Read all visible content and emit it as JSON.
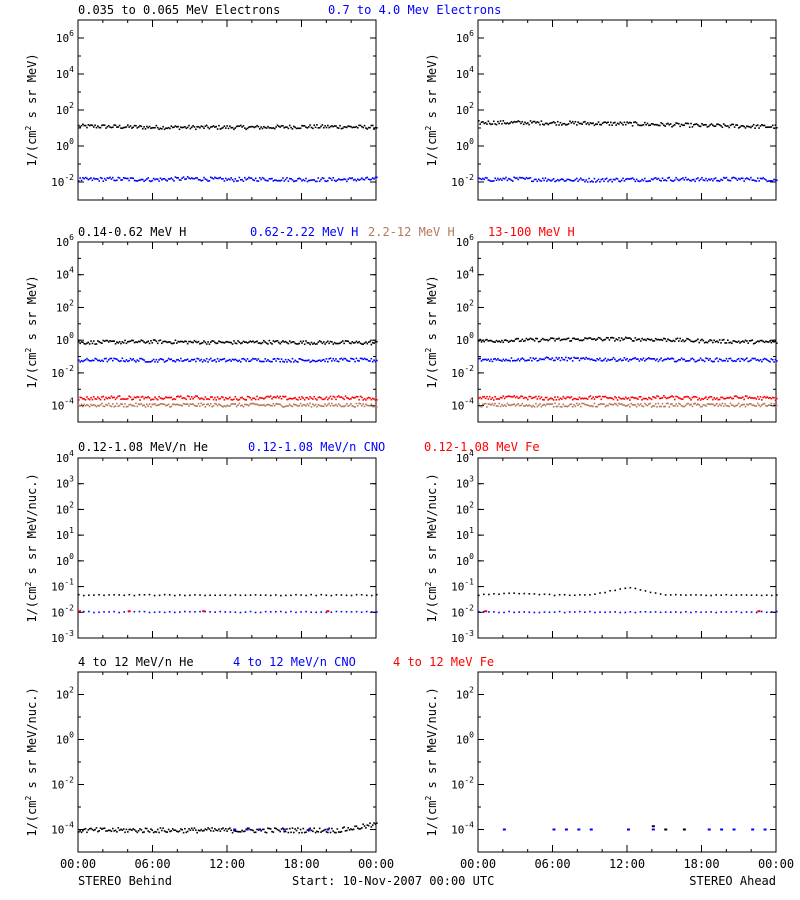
{
  "colors": {
    "black": "#000000",
    "blue": "#0000ff",
    "brown": "#b4785a",
    "red": "#ff0000"
  },
  "footer": {
    "left": "STEREO Behind",
    "center": "Start: 10-Nov-2007 00:00 UTC",
    "right": "STEREO Ahead"
  },
  "chart_data": [
    {
      "type": "scatter",
      "id": "electrons-behind",
      "ylabel": "1/(cm^2 s sr MeV)",
      "yscale": "log",
      "ylim": [
        0.001,
        10000000
      ],
      "yticks": [
        "10^-2",
        "10^0",
        "10^2",
        "10^4",
        "10^6"
      ],
      "series_labels": [
        {
          "text": "0.035 to 0.065 MeV Electrons",
          "color": "#000000"
        },
        {
          "text": "0.7 to 4.0 Mev Electrons",
          "color": "#0000ff"
        }
      ],
      "series": [
        {
          "color": "#000000",
          "x": [
            0,
            3,
            6,
            9,
            12,
            15,
            18,
            21,
            24
          ],
          "y": [
            14,
            13,
            12,
            12,
            12,
            12,
            13,
            13,
            12
          ]
        },
        {
          "color": "#0000ff",
          "x": [
            0,
            3,
            6,
            9,
            12,
            15,
            18,
            21,
            24
          ],
          "y": [
            0.015,
            0.016,
            0.015,
            0.017,
            0.015,
            0.016,
            0.015,
            0.015,
            0.016
          ]
        }
      ],
      "xticks": [
        "00:00",
        "06:00",
        "12:00",
        "18:00",
        "00:00"
      ]
    },
    {
      "type": "scatter",
      "id": "electrons-ahead",
      "ylabel": "1/(cm^2 s sr MeV)",
      "yscale": "log",
      "ylim": [
        0.001,
        10000000
      ],
      "yticks": [
        "10^-2",
        "10^0",
        "10^2",
        "10^4",
        "10^6"
      ],
      "series_labels": [],
      "series": [
        {
          "color": "#000000",
          "x": [
            0,
            3,
            6,
            9,
            12,
            15,
            18,
            21,
            24
          ],
          "y": [
            22,
            22,
            21,
            20,
            19,
            17,
            15,
            14,
            13
          ]
        },
        {
          "color": "#0000ff",
          "x": [
            0,
            3,
            6,
            9,
            12,
            15,
            18,
            21,
            24
          ],
          "y": [
            0.015,
            0.016,
            0.015,
            0.014,
            0.015,
            0.016,
            0.015,
            0.016,
            0.015
          ]
        }
      ],
      "xticks": [
        "00:00",
        "06:00",
        "12:00",
        "18:00",
        "00:00"
      ]
    },
    {
      "type": "scatter",
      "id": "protons-behind",
      "ylabel": "1/(cm^2 s sr MeV)",
      "yscale": "log",
      "ylim": [
        1e-05,
        1000000
      ],
      "yticks": [
        "10^-4",
        "10^-2",
        "10^0",
        "10^2",
        "10^4",
        "10^6"
      ],
      "series_labels": [
        {
          "text": "0.14-0.62 MeV H",
          "color": "#000000"
        },
        {
          "text": "0.62-2.22 MeV H",
          "color": "#0000ff"
        },
        {
          "text": "2.2-12 MeV H",
          "color": "#b4785a"
        },
        {
          "text": "13-100 MeV H",
          "color": "#ff0000"
        }
      ],
      "series": [
        {
          "color": "#000000",
          "x": [
            0,
            3,
            6,
            9,
            12,
            15,
            18,
            21,
            24
          ],
          "y": [
            0.8,
            0.85,
            0.9,
            0.85,
            0.8,
            0.85,
            0.8,
            0.8,
            0.75
          ]
        },
        {
          "color": "#0000ff",
          "x": [
            0,
            3,
            6,
            9,
            12,
            15,
            18,
            21,
            24
          ],
          "y": [
            0.065,
            0.07,
            0.065,
            0.07,
            0.065,
            0.07,
            0.065,
            0.07,
            0.065
          ]
        },
        {
          "color": "#b4785a",
          "x": [
            0,
            3,
            6,
            9,
            12,
            15,
            18,
            21,
            24
          ],
          "y": [
            0.00012,
            0.00012,
            0.00012,
            0.00012,
            0.00012,
            0.00012,
            0.00012,
            0.00012,
            0.00012
          ]
        },
        {
          "color": "#ff0000",
          "x": [
            0,
            3,
            6,
            9,
            12,
            15,
            18,
            21,
            24
          ],
          "y": [
            0.0003,
            0.00035,
            0.0003,
            0.00035,
            0.0003,
            0.00035,
            0.0003,
            0.00035,
            0.0003
          ]
        }
      ],
      "xticks": [
        "00:00",
        "06:00",
        "12:00",
        "18:00",
        "00:00"
      ]
    },
    {
      "type": "scatter",
      "id": "protons-ahead",
      "ylabel": "1/(cm^2 s sr MeV)",
      "yscale": "log",
      "ylim": [
        1e-05,
        1000000
      ],
      "yticks": [
        "10^-4",
        "10^-2",
        "10^0",
        "10^2",
        "10^4",
        "10^6"
      ],
      "series_labels": [],
      "series": [
        {
          "color": "#000000",
          "x": [
            0,
            3,
            6,
            9,
            12,
            15,
            18,
            21,
            24
          ],
          "y": [
            1.0,
            1.1,
            1.2,
            1.3,
            1.3,
            1.2,
            1.0,
            0.9,
            0.85
          ]
        },
        {
          "color": "#0000ff",
          "x": [
            0,
            3,
            6,
            9,
            12,
            15,
            18,
            21,
            24
          ],
          "y": [
            0.07,
            0.075,
            0.08,
            0.075,
            0.075,
            0.07,
            0.07,
            0.07,
            0.065
          ]
        },
        {
          "color": "#b4785a",
          "x": [
            0,
            3,
            6,
            9,
            12,
            15,
            18,
            21,
            24
          ],
          "y": [
            0.00012,
            0.00012,
            0.00012,
            0.00012,
            0.00012,
            0.00012,
            0.00012,
            0.00012,
            0.00012
          ]
        },
        {
          "color": "#ff0000",
          "x": [
            0,
            3,
            6,
            9,
            12,
            15,
            18,
            21,
            24
          ],
          "y": [
            0.0003,
            0.00035,
            0.0003,
            0.00035,
            0.0003,
            0.00035,
            0.0003,
            0.00035,
            0.0003
          ]
        }
      ],
      "xticks": [
        "00:00",
        "06:00",
        "12:00",
        "18:00",
        "00:00"
      ]
    },
    {
      "type": "scatter",
      "id": "heavy-low-behind",
      "ylabel": "1/(cm^2 s sr MeV/nuc.)",
      "yscale": "log",
      "ylim": [
        0.001,
        10000
      ],
      "yticks": [
        "10^-3",
        "10^-2",
        "10^-1",
        "10^0",
        "10^1",
        "10^2",
        "10^3",
        "10^4"
      ],
      "series_labels": [
        {
          "text": "0.12-1.08 MeV/n He",
          "color": "#000000"
        },
        {
          "text": "0.12-1.08 MeV/n CNO",
          "color": "#0000ff"
        },
        {
          "text": "0.12-1.08 MeV Fe",
          "color": "#ff0000"
        }
      ],
      "series": [
        {
          "color": "#000000",
          "x": [
            0,
            3,
            6,
            9,
            12,
            15,
            18,
            21,
            24
          ],
          "y": [
            0.05,
            0.05,
            0.05,
            0.05,
            0.05,
            0.05,
            0.05,
            0.05,
            0.05
          ]
        },
        {
          "color": "#0000ff",
          "x": [
            0,
            3,
            6,
            9,
            12,
            15,
            18,
            21,
            24
          ],
          "y": [
            0.011,
            0.011,
            0.011,
            0.011,
            0.011,
            0.011,
            0.011,
            0.011,
            0.011
          ]
        },
        {
          "color": "#ff0000",
          "x": [
            0,
            4,
            10,
            20
          ],
          "y": [
            0.011,
            0.011,
            0.011,
            0.011
          ]
        }
      ],
      "xticks": [
        "00:00",
        "06:00",
        "12:00",
        "18:00",
        "00:00"
      ]
    },
    {
      "type": "scatter",
      "id": "heavy-low-ahead",
      "ylabel": "1/(cm^2 s sr MeV/nuc.)",
      "yscale": "log",
      "ylim": [
        0.001,
        10000
      ],
      "yticks": [
        "10^-3",
        "10^-2",
        "10^-1",
        "10^0",
        "10^1",
        "10^2",
        "10^3",
        "10^4"
      ],
      "series_labels": [],
      "series": [
        {
          "color": "#000000",
          "x": [
            0,
            3,
            6,
            9,
            12,
            15,
            18,
            21,
            24
          ],
          "y": [
            0.05,
            0.06,
            0.05,
            0.05,
            0.1,
            0.05,
            0.05,
            0.05,
            0.05
          ]
        },
        {
          "color": "#0000ff",
          "x": [
            0,
            3,
            6,
            9,
            12,
            15,
            18,
            21,
            24
          ],
          "y": [
            0.011,
            0.011,
            0.011,
            0.011,
            0.011,
            0.011,
            0.011,
            0.011,
            0.011
          ]
        },
        {
          "color": "#ff0000",
          "x": [
            0.5,
            22.5
          ],
          "y": [
            0.011,
            0.011
          ]
        }
      ],
      "xticks": [
        "00:00",
        "06:00",
        "12:00",
        "18:00",
        "00:00"
      ]
    },
    {
      "type": "scatter",
      "id": "heavy-high-behind",
      "ylabel": "1/(cm^2 s sr MeV/nuc.)",
      "yscale": "log",
      "ylim": [
        1e-05,
        1000
      ],
      "yticks": [
        "10^-4",
        "10^-2",
        "10^0",
        "10^2"
      ],
      "series_labels": [
        {
          "text": "4 to 12 MeV/n He",
          "color": "#000000"
        },
        {
          "text": "4 to 12 MeV/n CNO",
          "color": "#0000ff"
        },
        {
          "text": "4 to 12 MeV Fe",
          "color": "#ff0000"
        }
      ],
      "series": [
        {
          "color": "#000000",
          "x": [
            0,
            3,
            6,
            9,
            12,
            15,
            18,
            21,
            23
          ],
          "y": [
            0.0001,
            0.0001,
            0.0001,
            0.0001,
            0.0001,
            0.0001,
            0.0001,
            0.0001,
            0.00018
          ]
        },
        {
          "color": "#0000ff",
          "x": [
            12.5,
            13.5,
            14.5,
            16.5,
            18.5,
            20
          ],
          "y": [
            0.0001,
            0.0001,
            0.0001,
            0.0001,
            0.0001,
            0.0001
          ]
        }
      ],
      "xticks": [
        "00:00",
        "06:00",
        "12:00",
        "18:00",
        "00:00"
      ]
    },
    {
      "type": "scatter",
      "id": "heavy-high-ahead",
      "ylabel": "1/(cm^2 s sr MeV/nuc.)",
      "yscale": "log",
      "ylim": [
        1e-05,
        1000
      ],
      "yticks": [
        "10^-4",
        "10^-2",
        "10^0",
        "10^2"
      ],
      "series_labels": [],
      "series": [
        {
          "color": "#000000",
          "x": [
            14,
            15,
            16.5
          ],
          "y": [
            0.00014,
            0.0001,
            0.0001
          ]
        },
        {
          "color": "#0000ff",
          "x": [
            2,
            6,
            7,
            8,
            9,
            12,
            14,
            18.5,
            19.5,
            20.5,
            22,
            23
          ],
          "y": [
            0.0001,
            0.0001,
            0.0001,
            0.0001,
            0.0001,
            0.0001,
            0.0001,
            0.0001,
            0.0001,
            0.0001,
            0.0001,
            0.0001
          ]
        }
      ],
      "xticks": [
        "00:00",
        "06:00",
        "12:00",
        "18:00",
        "00:00"
      ]
    }
  ]
}
